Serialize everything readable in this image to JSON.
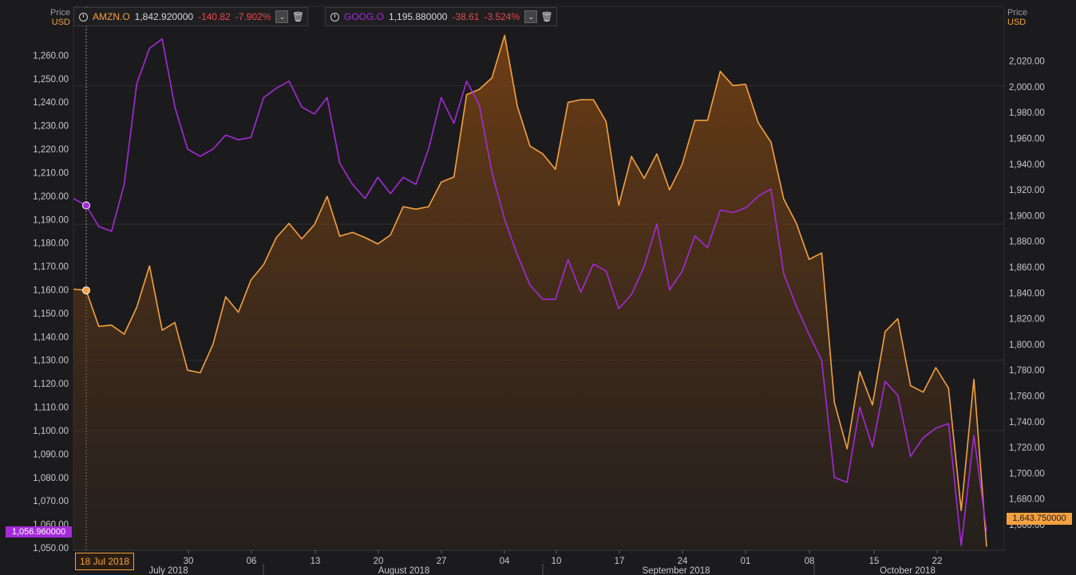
{
  "legend": {
    "amzn": {
      "symbol": "AMZN.O",
      "price": "1,842.920000",
      "change": "-140.82",
      "pct": "-7.902%"
    },
    "goog": {
      "symbol": "GOOG.O",
      "price": "1,195.880000",
      "change": "-38.61",
      "pct": "-3.524%"
    }
  },
  "left_axis": {
    "label": "Price",
    "unit": "USD"
  },
  "right_axis": {
    "label": "Price",
    "unit": "USD"
  },
  "cursor_date": "18 Jul 2018",
  "goog_last_label": "1,056.960000",
  "amzn_last_label": "1,643.750000",
  "colors": {
    "amzn": "#f5a040",
    "goog": "#a52ad8",
    "background": "#1b1b1d",
    "grid": "#333336"
  },
  "chart_data": {
    "type": "line",
    "x_day_ticks": [
      "30",
      "06",
      "13",
      "20",
      "27",
      "04",
      "10",
      "17",
      "24",
      "01",
      "08",
      "15",
      "22"
    ],
    "x_month_labels": [
      "July 2018",
      "August 2018",
      "September 2018",
      "October 2018"
    ],
    "left_axis_ticks": [
      "1,050.00",
      "1,060.00",
      "1,070.00",
      "1,080.00",
      "1,090.00",
      "1,100.00",
      "1,110.00",
      "1,120.00",
      "1,130.00",
      "1,140.00",
      "1,150.00",
      "1,160.00",
      "1,170.00",
      "1,180.00",
      "1,190.00",
      "1,200.00",
      "1,210.00",
      "1,220.00",
      "1,230.00",
      "1,240.00",
      "1,250.00",
      "1,260.00"
    ],
    "right_axis_ticks": [
      "1,660.00",
      "1,680.00",
      "1,700.00",
      "1,720.00",
      "1,740.00",
      "1,760.00",
      "1,780.00",
      "1,800.00",
      "1,820.00",
      "1,840.00",
      "1,860.00",
      "1,880.00",
      "1,900.00",
      "1,920.00",
      "1,940.00",
      "1,960.00",
      "1,980.00",
      "2,000.00",
      "2,020.00"
    ],
    "left_range": [
      1048,
      1270
    ],
    "right_range": [
      1640,
      2060
    ],
    "series": [
      {
        "name": "AMZN.O",
        "axis": "right",
        "area": true,
        "values": [
          1843,
          1842,
          1814,
          1815,
          1808,
          1829,
          1861,
          1811,
          1817,
          1780,
          1778,
          1800,
          1837,
          1825,
          1850,
          1862,
          1883,
          1894,
          1882,
          1893,
          1915,
          1884,
          1887,
          1883,
          1878,
          1885,
          1907,
          1905,
          1907,
          1926,
          1930,
          1994,
          1998,
          2007,
          2040,
          1985,
          1954,
          1948,
          1936,
          1988,
          1990,
          1990,
          1973,
          1908,
          1946,
          1929,
          1948,
          1920,
          1940,
          1974,
          1974,
          2012,
          2001,
          2002,
          1972,
          1957,
          1913,
          1894,
          1866,
          1871,
          1755,
          1719,
          1779,
          1753,
          1810,
          1820,
          1768,
          1763,
          1782,
          1766,
          1671,
          1773,
          1643
        ]
      },
      {
        "name": "GOOG.O",
        "axis": "left",
        "area": false,
        "values": [
          1199,
          1196,
          1187,
          1185,
          1205,
          1248,
          1263,
          1267,
          1238,
          1220,
          1217,
          1220,
          1226,
          1224,
          1225,
          1242,
          1246,
          1249,
          1238,
          1235,
          1242,
          1214,
          1205,
          1199,
          1208,
          1201,
          1208,
          1205,
          1220,
          1242,
          1231,
          1249,
          1239,
          1210,
          1190,
          1175,
          1162,
          1156,
          1156,
          1173,
          1159,
          1171,
          1168,
          1152,
          1158,
          1170,
          1188,
          1160,
          1168,
          1183,
          1178,
          1194,
          1193,
          1195,
          1200,
          1203,
          1167,
          1153,
          1141,
          1130,
          1080,
          1078,
          1110,
          1093,
          1121,
          1115,
          1089,
          1097,
          1101,
          1103,
          1051,
          1098,
          1057
        ]
      }
    ]
  }
}
